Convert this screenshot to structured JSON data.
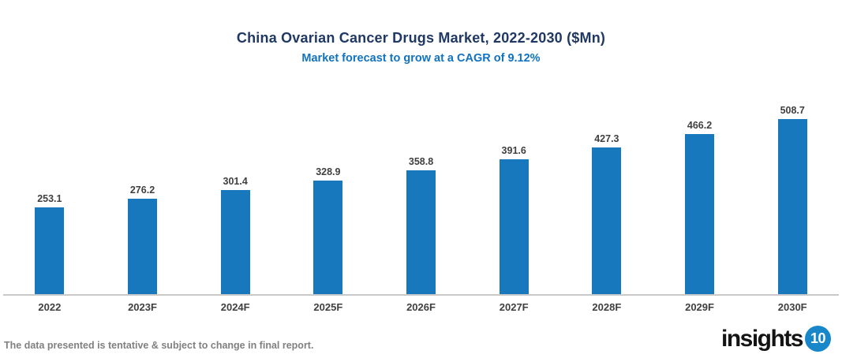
{
  "header": {
    "title": "China Ovarian Cancer Drugs Market, 2022-2030 ($Mn)",
    "subtitle": "Market forecast to grow at a CAGR of 9.12%"
  },
  "chart_data": {
    "type": "bar",
    "title": "China Ovarian Cancer Drugs Market, 2022-2030 ($Mn)",
    "subtitle": "Market forecast to grow at a CAGR of 9.12%",
    "categories": [
      "2022",
      "2023F",
      "2024F",
      "2025F",
      "2026F",
      "2027F",
      "2028F",
      "2029F",
      "2030F"
    ],
    "values": [
      253.1,
      276.2,
      301.4,
      328.9,
      358.8,
      391.6,
      427.3,
      466.2,
      508.7
    ],
    "xlabel": "",
    "ylabel": "",
    "ylim": [
      0,
      560
    ],
    "grid": false,
    "legend": false,
    "value_labels_shown": true,
    "cagr_percent": 9.12
  },
  "footer": {
    "disclaimer": "The data presented is tentative & subject to change in final report.",
    "logo_word": "insights",
    "logo_badge": "10"
  },
  "colors": {
    "title": "#1F3864",
    "subtitle": "#1072C0",
    "bar": "#1878BE",
    "label": "#404040",
    "axis_line": "#C9C9C9",
    "footer_text": "#808080",
    "logo_text": "#141414",
    "logo_badge_bg": "#1787C9"
  }
}
